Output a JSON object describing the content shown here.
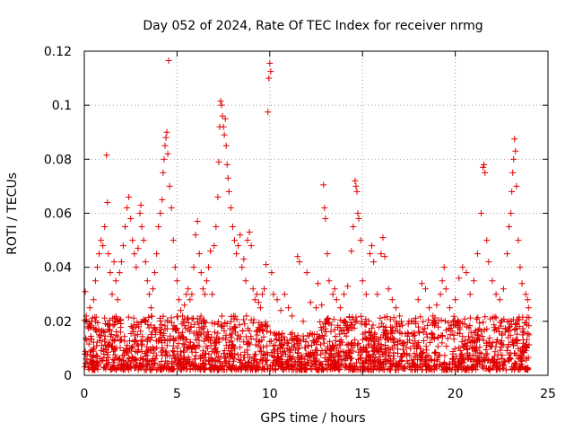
{
  "chart_data": {
    "type": "scatter",
    "title": "Day 052 of 2024, Rate Of TEC Index for receiver nrmg",
    "xlabel": "GPS time / hours",
    "ylabel": "ROTI / TECUs",
    "xlim": [
      0,
      25
    ],
    "ylim": [
      0,
      0.12
    ],
    "xticks": [
      0,
      5,
      10,
      15,
      20,
      25
    ],
    "yticks": [
      0,
      0.02,
      0.04,
      0.06,
      0.08,
      0.1,
      0.12
    ],
    "xtick_labels": [
      "0",
      "5",
      "10",
      "15",
      "20",
      "25"
    ],
    "ytick_labels": [
      "0",
      "0.02",
      "0.04",
      "0.06",
      "0.08",
      "0.1",
      "0.12"
    ],
    "grid": true,
    "marker": "+",
    "color": "#e00000",
    "series": [
      {
        "name": "ROTI",
        "points": [
          [
            0.05,
            0.031
          ],
          [
            0.1,
            0.022
          ],
          [
            0.2,
            0.018
          ],
          [
            0.3,
            0.025
          ],
          [
            0.4,
            0.02
          ],
          [
            0.5,
            0.028
          ],
          [
            0.6,
            0.035
          ],
          [
            0.7,
            0.04
          ],
          [
            0.8,
            0.045
          ],
          [
            0.9,
            0.05
          ],
          [
            1.0,
            0.048
          ],
          [
            1.1,
            0.055
          ],
          [
            1.2,
            0.0815
          ],
          [
            1.25,
            0.064
          ],
          [
            1.3,
            0.045
          ],
          [
            1.4,
            0.038
          ],
          [
            1.5,
            0.03
          ],
          [
            1.6,
            0.042
          ],
          [
            1.7,
            0.035
          ],
          [
            1.8,
            0.028
          ],
          [
            1.9,
            0.038
          ],
          [
            2.0,
            0.042
          ],
          [
            2.1,
            0.048
          ],
          [
            2.2,
            0.055
          ],
          [
            2.3,
            0.062
          ],
          [
            2.4,
            0.066
          ],
          [
            2.5,
            0.058
          ],
          [
            2.6,
            0.05
          ],
          [
            2.7,
            0.045
          ],
          [
            2.8,
            0.04
          ],
          [
            2.9,
            0.047
          ],
          [
            3.0,
            0.06
          ],
          [
            3.05,
            0.063
          ],
          [
            3.1,
            0.055
          ],
          [
            3.2,
            0.05
          ],
          [
            3.3,
            0.042
          ],
          [
            3.4,
            0.035
          ],
          [
            3.5,
            0.03
          ],
          [
            3.6,
            0.025
          ],
          [
            3.7,
            0.032
          ],
          [
            3.8,
            0.038
          ],
          [
            3.9,
            0.045
          ],
          [
            4.0,
            0.055
          ],
          [
            4.1,
            0.06
          ],
          [
            4.2,
            0.065
          ],
          [
            4.25,
            0.075
          ],
          [
            4.3,
            0.08
          ],
          [
            4.35,
            0.085
          ],
          [
            4.4,
            0.088
          ],
          [
            4.45,
            0.09
          ],
          [
            4.5,
            0.082
          ],
          [
            4.55,
            0.1165
          ],
          [
            4.6,
            0.07
          ],
          [
            4.7,
            0.062
          ],
          [
            4.8,
            0.05
          ],
          [
            4.9,
            0.04
          ],
          [
            5.0,
            0.035
          ],
          [
            5.1,
            0.028
          ],
          [
            5.2,
            0.024
          ],
          [
            5.3,
            0.022
          ],
          [
            5.4,
            0.026
          ],
          [
            5.5,
            0.03
          ],
          [
            5.6,
            0.032
          ],
          [
            5.7,
            0.028
          ],
          [
            5.8,
            0.03
          ],
          [
            5.9,
            0.04
          ],
          [
            6.0,
            0.052
          ],
          [
            6.1,
            0.057
          ],
          [
            6.2,
            0.045
          ],
          [
            6.3,
            0.038
          ],
          [
            6.4,
            0.032
          ],
          [
            6.5,
            0.03
          ],
          [
            6.6,
            0.035
          ],
          [
            6.7,
            0.04
          ],
          [
            6.8,
            0.046
          ],
          [
            6.9,
            0.03
          ],
          [
            7.0,
            0.048
          ],
          [
            7.1,
            0.055
          ],
          [
            7.2,
            0.066
          ],
          [
            7.25,
            0.079
          ],
          [
            7.3,
            0.092
          ],
          [
            7.35,
            0.1015
          ],
          [
            7.4,
            0.1
          ],
          [
            7.45,
            0.096
          ],
          [
            7.5,
            0.092
          ],
          [
            7.55,
            0.089
          ],
          [
            7.6,
            0.095
          ],
          [
            7.65,
            0.085
          ],
          [
            7.7,
            0.078
          ],
          [
            7.75,
            0.073
          ],
          [
            7.8,
            0.068
          ],
          [
            7.9,
            0.062
          ],
          [
            8.0,
            0.055
          ],
          [
            8.1,
            0.05
          ],
          [
            8.2,
            0.045
          ],
          [
            8.3,
            0.048
          ],
          [
            8.4,
            0.052
          ],
          [
            8.5,
            0.04
          ],
          [
            8.6,
            0.043
          ],
          [
            8.7,
            0.035
          ],
          [
            8.8,
            0.05
          ],
          [
            8.9,
            0.053
          ],
          [
            9.0,
            0.048
          ],
          [
            9.1,
            0.032
          ],
          [
            9.2,
            0.028
          ],
          [
            9.3,
            0.03
          ],
          [
            9.4,
            0.027
          ],
          [
            9.5,
            0.025
          ],
          [
            9.6,
            0.03
          ],
          [
            9.7,
            0.032
          ],
          [
            9.8,
            0.041
          ],
          [
            9.9,
            0.0975
          ],
          [
            9.95,
            0.11
          ],
          [
            10.0,
            0.1155
          ],
          [
            10.05,
            0.1125
          ],
          [
            10.1,
            0.038
          ],
          [
            10.2,
            0.03
          ],
          [
            10.4,
            0.028
          ],
          [
            10.6,
            0.024
          ],
          [
            10.8,
            0.03
          ],
          [
            11.0,
            0.025
          ],
          [
            11.2,
            0.022
          ],
          [
            11.5,
            0.044
          ],
          [
            11.6,
            0.042
          ],
          [
            11.8,
            0.02
          ],
          [
            12.0,
            0.038
          ],
          [
            12.2,
            0.027
          ],
          [
            12.5,
            0.025
          ],
          [
            12.6,
            0.034
          ],
          [
            12.8,
            0.026
          ],
          [
            12.9,
            0.0705
          ],
          [
            12.95,
            0.062
          ],
          [
            13.0,
            0.058
          ],
          [
            13.1,
            0.045
          ],
          [
            13.2,
            0.035
          ],
          [
            13.4,
            0.03
          ],
          [
            13.5,
            0.032
          ],
          [
            13.6,
            0.028
          ],
          [
            13.8,
            0.025
          ],
          [
            14.0,
            0.03
          ],
          [
            14.2,
            0.033
          ],
          [
            14.4,
            0.046
          ],
          [
            14.5,
            0.055
          ],
          [
            14.6,
            0.072
          ],
          [
            14.65,
            0.07
          ],
          [
            14.7,
            0.068
          ],
          [
            14.75,
            0.06
          ],
          [
            14.8,
            0.058
          ],
          [
            14.9,
            0.05
          ],
          [
            15.0,
            0.035
          ],
          [
            15.2,
            0.03
          ],
          [
            15.4,
            0.045
          ],
          [
            15.5,
            0.048
          ],
          [
            15.6,
            0.042
          ],
          [
            15.8,
            0.03
          ],
          [
            16.0,
            0.045
          ],
          [
            16.1,
            0.051
          ],
          [
            16.2,
            0.044
          ],
          [
            16.4,
            0.032
          ],
          [
            16.6,
            0.028
          ],
          [
            16.8,
            0.025
          ],
          [
            17.0,
            0.022
          ],
          [
            17.5,
            0.02
          ],
          [
            18.0,
            0.028
          ],
          [
            18.2,
            0.034
          ],
          [
            18.4,
            0.032
          ],
          [
            18.6,
            0.025
          ],
          [
            18.8,
            0.022
          ],
          [
            19.0,
            0.026
          ],
          [
            19.2,
            0.03
          ],
          [
            19.3,
            0.035
          ],
          [
            19.4,
            0.04
          ],
          [
            19.5,
            0.032
          ],
          [
            19.7,
            0.025
          ],
          [
            20.0,
            0.028
          ],
          [
            20.2,
            0.036
          ],
          [
            20.4,
            0.04
          ],
          [
            20.6,
            0.038
          ],
          [
            20.8,
            0.03
          ],
          [
            21.0,
            0.035
          ],
          [
            21.2,
            0.045
          ],
          [
            21.4,
            0.06
          ],
          [
            21.5,
            0.077
          ],
          [
            21.55,
            0.078
          ],
          [
            21.6,
            0.075
          ],
          [
            21.7,
            0.05
          ],
          [
            21.8,
            0.042
          ],
          [
            22.0,
            0.035
          ],
          [
            22.2,
            0.03
          ],
          [
            22.4,
            0.028
          ],
          [
            22.6,
            0.032
          ],
          [
            22.8,
            0.045
          ],
          [
            22.9,
            0.055
          ],
          [
            23.0,
            0.06
          ],
          [
            23.05,
            0.068
          ],
          [
            23.1,
            0.075
          ],
          [
            23.15,
            0.08
          ],
          [
            23.2,
            0.0875
          ],
          [
            23.25,
            0.083
          ],
          [
            23.3,
            0.07
          ],
          [
            23.4,
            0.05
          ],
          [
            23.5,
            0.04
          ],
          [
            23.6,
            0.034
          ],
          [
            23.8,
            0.03
          ],
          [
            23.9,
            0.028
          ],
          [
            23.95,
            0.025
          ]
        ]
      }
    ]
  }
}
